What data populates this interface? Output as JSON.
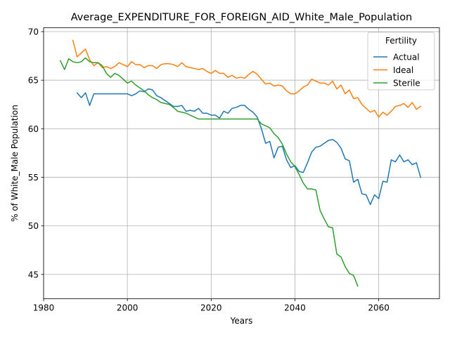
{
  "chart_data": {
    "type": "line",
    "title": "Average_EXPENDITURE_FOR_FOREIGN_AID_White_Male_Population",
    "xlabel": "Years",
    "ylabel": "% of White_Male Population",
    "xlim": [
      1980,
      2074.5
    ],
    "ylim": [
      42.5,
      70.4
    ],
    "xticks": [
      1980,
      2000,
      2020,
      2040,
      2060
    ],
    "yticks": [
      45,
      50,
      55,
      60,
      65,
      70
    ],
    "grid": true,
    "legend": {
      "title": "Fertility",
      "placement": "top-right"
    },
    "series": [
      {
        "name": "Actual",
        "color": "#1f77b4",
        "x": [
          1988,
          1989,
          1990,
          1991,
          1992,
          1993,
          1994,
          1995,
          1996,
          1997,
          1998,
          1999,
          2000,
          2001,
          2002,
          2003,
          2004,
          2005,
          2006,
          2007,
          2008,
          2009,
          2010,
          2011,
          2012,
          2013,
          2014,
          2015,
          2016,
          2017,
          2018,
          2019,
          2020,
          2021,
          2022,
          2023,
          2024,
          2025,
          2026,
          2027,
          2028,
          2029,
          2030,
          2031,
          2032,
          2033,
          2034,
          2035,
          2036,
          2037,
          2038,
          2039,
          2040,
          2041,
          2042,
          2043,
          2044,
          2045,
          2046,
          2047,
          2048,
          2049,
          2050,
          2051,
          2052,
          2053,
          2054,
          2055,
          2056,
          2057,
          2058,
          2059,
          2060,
          2061,
          2062,
          2063,
          2064,
          2065,
          2066,
          2067,
          2068,
          2069,
          2070
        ],
        "y": [
          63.7,
          63.2,
          63.7,
          62.4,
          63.6,
          63.6,
          63.6,
          63.6,
          63.6,
          63.6,
          63.6,
          63.6,
          63.6,
          63.4,
          63.6,
          63.9,
          63.8,
          64.1,
          64.0,
          63.4,
          63.2,
          62.9,
          62.6,
          62.3,
          62.3,
          62.4,
          61.8,
          61.9,
          61.8,
          62.1,
          61.6,
          61.6,
          61.4,
          61.4,
          61.1,
          61.8,
          61.6,
          62.1,
          62.2,
          62.4,
          62.4,
          62.0,
          61.7,
          61.2,
          60.0,
          58.5,
          58.7,
          57.0,
          58.1,
          58.2,
          56.8,
          56.0,
          56.2,
          55.6,
          55.5,
          56.5,
          57.6,
          58.1,
          58.2,
          58.5,
          58.8,
          58.9,
          58.6,
          58.0,
          56.9,
          56.7,
          54.5,
          54.8,
          53.3,
          53.2,
          52.2,
          53.2,
          52.8,
          54.6,
          54.5,
          56.8,
          56.6,
          57.3,
          56.6,
          56.8,
          56.3,
          56.5,
          55.0
        ]
      },
      {
        "name": "Ideal",
        "color": "#ff7f0e",
        "x": [
          1987,
          1988,
          1989,
          1990,
          1991,
          1992,
          1993,
          1994,
          1995,
          1996,
          1997,
          1998,
          1999,
          2000,
          2001,
          2002,
          2003,
          2004,
          2005,
          2006,
          2007,
          2008,
          2009,
          2010,
          2011,
          2012,
          2013,
          2014,
          2015,
          2016,
          2017,
          2018,
          2019,
          2020,
          2021,
          2022,
          2023,
          2024,
          2025,
          2026,
          2027,
          2028,
          2029,
          2030,
          2031,
          2032,
          2033,
          2034,
          2035,
          2036,
          2037,
          2038,
          2039,
          2040,
          2041,
          2042,
          2043,
          2044,
          2045,
          2046,
          2047,
          2048,
          2049,
          2050,
          2051,
          2052,
          2053,
          2054,
          2055,
          2056,
          2057,
          2058,
          2059,
          2060,
          2061,
          2062,
          2063,
          2064,
          2065,
          2066,
          2067,
          2068,
          2069,
          2070
        ],
        "y": [
          69.1,
          67.4,
          67.8,
          68.2,
          67.1,
          66.5,
          66.8,
          66.3,
          66.4,
          66.2,
          66.4,
          66.8,
          66.6,
          66.4,
          66.9,
          66.6,
          66.6,
          66.3,
          66.5,
          66.5,
          66.2,
          66.6,
          66.7,
          66.7,
          66.6,
          66.4,
          66.8,
          66.4,
          66.3,
          66.2,
          66.1,
          66.2,
          65.9,
          65.7,
          66.0,
          65.7,
          65.7,
          65.3,
          65.5,
          65.2,
          65.3,
          65.2,
          65.6,
          65.9,
          65.6,
          65.1,
          64.6,
          64.7,
          64.4,
          64.5,
          64.4,
          63.9,
          63.6,
          63.6,
          63.9,
          64.3,
          64.5,
          65.1,
          64.9,
          64.7,
          64.7,
          64.5,
          64.9,
          64.1,
          64.5,
          63.6,
          64.0,
          63.1,
          63.2,
          62.5,
          62.1,
          61.7,
          61.9,
          61.2,
          61.7,
          61.4,
          61.8,
          62.3,
          62.4,
          62.6,
          62.2,
          62.7,
          62.0,
          62.3
        ]
      },
      {
        "name": "Sterile",
        "color": "#2ca02c",
        "x": [
          1984,
          1985,
          1986,
          1987,
          1988,
          1989,
          1990,
          1991,
          1992,
          1993,
          1994,
          1995,
          1996,
          1997,
          1998,
          1999,
          2000,
          2001,
          2002,
          2003,
          2004,
          2005,
          2006,
          2007,
          2008,
          2009,
          2010,
          2011,
          2012,
          2013,
          2014,
          2015,
          2016,
          2017,
          2018,
          2019,
          2020,
          2021,
          2022,
          2023,
          2024,
          2025,
          2026,
          2027,
          2028,
          2029,
          2030,
          2031,
          2032,
          2033,
          2034,
          2035,
          2036,
          2037,
          2038,
          2039,
          2040,
          2041,
          2042,
          2043,
          2044,
          2045,
          2046,
          2047,
          2048,
          2049,
          2050,
          2051,
          2052,
          2053,
          2054,
          2055
        ],
        "y": [
          67.0,
          66.1,
          67.2,
          66.9,
          66.8,
          66.9,
          67.3,
          66.9,
          66.8,
          66.8,
          66.5,
          65.7,
          65.3,
          65.7,
          65.5,
          65.1,
          64.7,
          64.9,
          64.5,
          64.2,
          63.9,
          63.5,
          63.2,
          63.0,
          62.7,
          62.6,
          62.5,
          62.2,
          61.8,
          61.7,
          61.6,
          61.4,
          61.2,
          61.0,
          61.0,
          61.0,
          61.0,
          61.0,
          61.0,
          61.0,
          61.0,
          61.0,
          61.0,
          61.0,
          61.0,
          61.0,
          61.0,
          61.0,
          60.5,
          60.3,
          60.1,
          59.5,
          59.1,
          58.4,
          57.4,
          56.6,
          56.1,
          55.3,
          54.4,
          53.8,
          53.8,
          53.7,
          51.6,
          50.7,
          49.9,
          49.8,
          47.1,
          46.8,
          45.8,
          45.1,
          44.9,
          43.8
        ]
      }
    ]
  }
}
